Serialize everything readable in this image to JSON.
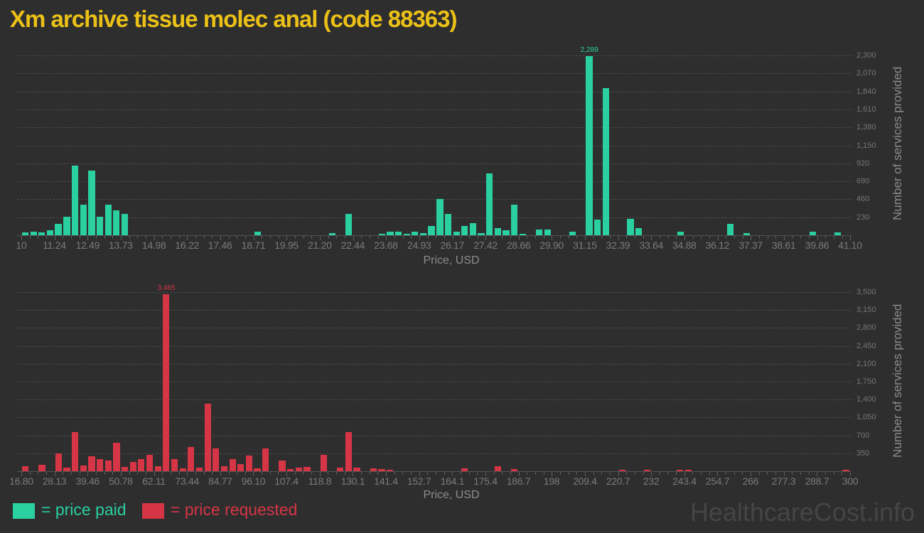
{
  "title": "Xm archive tissue molec anal (code 88363)",
  "watermark": "HealthcareCost.info",
  "colors": {
    "background": "#2e2e2e",
    "paid_green": "#2ad0a0",
    "requested_red": "#d63545",
    "title_gold": "#ebc117",
    "grid_gray": "#4b4b4b",
    "axis_gray": "#525252",
    "tick_label_gray": "#7b7b7b"
  },
  "legend": {
    "paid_label": "= price paid",
    "requested_label": "= price requested"
  },
  "chart_data": [
    {
      "type": "bar",
      "series": "price paid",
      "color": "#2ad0a0",
      "xlabel": "Price, USD",
      "ylabel": "Number of services provided",
      "x_min": 10,
      "x_max": 41.1,
      "bin_width": 0.3111,
      "grid": true,
      "legend_position": "bottom",
      "x_ticks": [
        "10",
        "11.24",
        "12.49",
        "13.73",
        "14.98",
        "16.22",
        "17.46",
        "18.71",
        "19.95",
        "21.20",
        "22.44",
        "23.68",
        "24.93",
        "26.17",
        "27.42",
        "28.66",
        "29.90",
        "31.15",
        "32.39",
        "33.64",
        "34.88",
        "36.12",
        "37.37",
        "38.61",
        "39.86",
        "41.10"
      ],
      "y_ticks": [
        "230",
        "460",
        "690",
        "920",
        "1,150",
        "1,380",
        "1,610",
        "1,840",
        "2,070",
        "2,300"
      ],
      "y_tick_step": 230,
      "ylim": [
        0,
        2415
      ],
      "bars": [
        [
          10.0,
          35
        ],
        [
          10.31,
          50
        ],
        [
          10.62,
          35
        ],
        [
          10.93,
          65
        ],
        [
          11.24,
          145
        ],
        [
          11.56,
          235
        ],
        [
          11.87,
          895
        ],
        [
          12.18,
          395
        ],
        [
          12.49,
          825
        ],
        [
          12.8,
          235
        ],
        [
          13.11,
          395
        ],
        [
          13.42,
          320
        ],
        [
          13.73,
          275
        ],
        [
          18.71,
          45
        ],
        [
          21.51,
          30
        ],
        [
          22.13,
          270
        ],
        [
          23.38,
          20
        ],
        [
          23.69,
          45
        ],
        [
          24.0,
          50
        ],
        [
          24.31,
          18
        ],
        [
          24.62,
          45
        ],
        [
          24.93,
          30
        ],
        [
          25.24,
          120
        ],
        [
          25.56,
          465
        ],
        [
          25.87,
          270
        ],
        [
          26.18,
          45
        ],
        [
          26.49,
          120
        ],
        [
          26.8,
          155
        ],
        [
          27.11,
          30
        ],
        [
          27.42,
          790
        ],
        [
          27.73,
          90
        ],
        [
          28.04,
          60
        ],
        [
          28.35,
          390
        ],
        [
          28.66,
          18
        ],
        [
          29.29,
          75
        ],
        [
          29.6,
          75
        ],
        [
          30.53,
          45
        ],
        [
          31.16,
          2289
        ],
        [
          31.47,
          200
        ],
        [
          31.78,
          1880
        ],
        [
          32.71,
          205
        ],
        [
          33.02,
          90
        ],
        [
          34.58,
          45
        ],
        [
          36.45,
          145
        ],
        [
          37.07,
          25
        ],
        [
          39.55,
          45
        ],
        [
          40.49,
          35
        ]
      ],
      "annotation": {
        "text": "2,289",
        "price": 31.16,
        "value": 2289
      }
    },
    {
      "type": "bar",
      "series": "price requested",
      "color": "#d63545",
      "xlabel": "Price, USD",
      "ylabel": "Number of services provided",
      "x_min": 16.8,
      "x_max": 300,
      "bin_width": 2.832,
      "grid": true,
      "legend_position": "bottom",
      "x_ticks": [
        "16.80",
        "28.13",
        "39.46",
        "50.78",
        "62.11",
        "73.44",
        "84.77",
        "96.10",
        "107.4",
        "118.8",
        "130.1",
        "141.4",
        "152.7",
        "164.1",
        "175.4",
        "186.7",
        "198",
        "209.4",
        "220.7",
        "232",
        "243.4",
        "254.7",
        "266",
        "277.3",
        "288.7",
        "300"
      ],
      "y_ticks": [
        "350",
        "700",
        "1,050",
        "1,400",
        "1,750",
        "2,100",
        "2,450",
        "2,800",
        "3,150",
        "3,500"
      ],
      "y_tick_step": 350,
      "ylim": [
        0,
        3675
      ],
      "bars": [
        [
          16.8,
          100
        ],
        [
          22.46,
          130
        ],
        [
          28.13,
          350
        ],
        [
          30.96,
          70
        ],
        [
          33.79,
          765
        ],
        [
          36.62,
          115
        ],
        [
          39.46,
          287
        ],
        [
          42.29,
          240
        ],
        [
          45.12,
          208
        ],
        [
          47.95,
          555
        ],
        [
          50.78,
          83
        ],
        [
          53.62,
          176
        ],
        [
          56.45,
          231
        ],
        [
          59.28,
          315
        ],
        [
          62.11,
          93
        ],
        [
          64.94,
          3465
        ],
        [
          67.77,
          240
        ],
        [
          70.6,
          55
        ],
        [
          73.44,
          477
        ],
        [
          76.27,
          70
        ],
        [
          79.1,
          1320
        ],
        [
          81.93,
          440
        ],
        [
          84.76,
          93
        ],
        [
          87.6,
          231
        ],
        [
          90.42,
          139
        ],
        [
          93.26,
          300
        ],
        [
          96.1,
          60
        ],
        [
          98.93,
          440
        ],
        [
          104.59,
          208
        ],
        [
          107.42,
          46
        ],
        [
          110.26,
          70
        ],
        [
          113.09,
          83
        ],
        [
          118.75,
          315
        ],
        [
          124.41,
          70
        ],
        [
          127.25,
          765
        ],
        [
          130.08,
          70
        ],
        [
          135.74,
          60
        ],
        [
          138.58,
          46
        ],
        [
          141.41,
          23
        ],
        [
          166.9,
          60
        ],
        [
          178.22,
          93
        ],
        [
          183.89,
          46
        ],
        [
          220.7,
          20
        ],
        [
          229.2,
          20
        ],
        [
          240.53,
          20
        ],
        [
          243.36,
          20
        ],
        [
          297.17,
          23
        ]
      ],
      "annotation": {
        "text": "3,465",
        "price": 64.94,
        "value": 3465
      }
    }
  ]
}
